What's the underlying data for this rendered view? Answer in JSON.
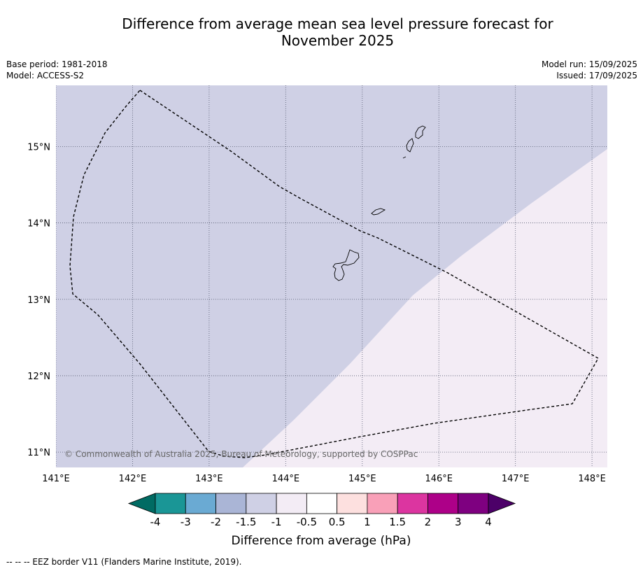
{
  "title": {
    "line1": "Difference from average mean sea level pressure forecast for",
    "line2": "November 2025"
  },
  "meta_left": {
    "base_period": "Base period: 1981-2018",
    "model": "Model: ACCESS-S2"
  },
  "meta_right": {
    "model_run": "Model run: 15/09/2025",
    "issued": "Issued: 17/09/2025"
  },
  "map": {
    "lon_range": [
      141,
      148.2
    ],
    "lat_range": [
      10.8,
      15.8
    ],
    "x_ticks": [
      "141°E",
      "142°E",
      "143°E",
      "144°E",
      "145°E",
      "146°E",
      "147°E",
      "148°E"
    ],
    "y_ticks": [
      "15°N",
      "14°N",
      "13°N",
      "12°N",
      "11°N"
    ],
    "regions": [
      {
        "name": "-1.5 to -1",
        "color": "#cfd0e5"
      },
      {
        "name": "-1 to -0.5",
        "color": "#f3ecf5"
      }
    ],
    "copyright": "© Commonwealth of Australia 2025, Bureau of Meteorology, supported by COSPPac"
  },
  "colorbar": {
    "colors": [
      "#006b63",
      "#1a9696",
      "#6aaad3",
      "#aab5d6",
      "#cfd0e5",
      "#f3ecf5",
      "#ffffff",
      "#fde0df",
      "#f9a0b8",
      "#dc35a0",
      "#ad0088",
      "#7e0080",
      "#4c0068"
    ],
    "labels": [
      "-4",
      "-3",
      "-2",
      "-1.5",
      "-1",
      "-0.5",
      "0.5",
      "1",
      "1.5",
      "2",
      "3",
      "4"
    ],
    "title": "Difference from average (hPa)"
  },
  "footnote": "--  --  -- EEZ border V11 (Flanders Marine Institute, 2019)."
}
